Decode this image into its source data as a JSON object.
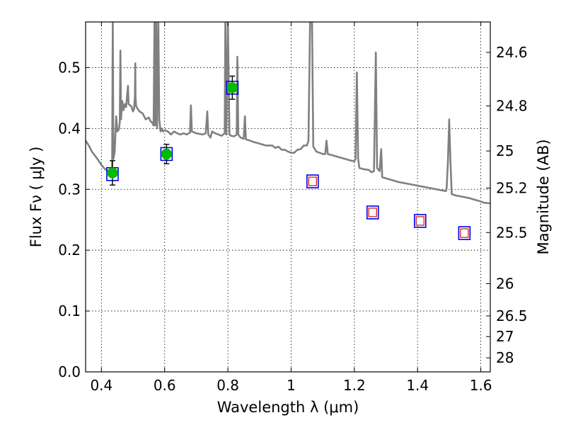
{
  "chart_data": {
    "type": "scatter",
    "xlabel": "Wavelength  λ (μm)",
    "ylabel_left": "Flux  Fν  ( μJy )",
    "ylabel_right": "Magnitude (AB)",
    "xlim": [
      0.35,
      1.63
    ],
    "ylim": [
      0,
      0.575
    ],
    "grid": true,
    "x_ticks": [
      0.4,
      0.6,
      0.8,
      1.0,
      1.2,
      1.4,
      1.6
    ],
    "x_tick_labels": [
      "0.4",
      "0.6",
      "0.8",
      "1",
      "1.2",
      "1.4",
      "1.6"
    ],
    "y_ticks": [
      0,
      0.1,
      0.2,
      0.3,
      0.4,
      0.5
    ],
    "y_tick_labels": [
      "0.0",
      "0.1",
      "0.2",
      "0.3",
      "0.4",
      "0.5"
    ],
    "right_ticks": [
      {
        "label": "24.6",
        "flux": 0.525
      },
      {
        "label": "24.8",
        "flux": 0.437
      },
      {
        "label": "25",
        "flux": 0.363
      },
      {
        "label": "25.2",
        "flux": 0.302
      },
      {
        "label": "25.5",
        "flux": 0.229
      },
      {
        "label": "26",
        "flux": 0.145
      },
      {
        "label": "26.5",
        "flux": 0.092
      },
      {
        "label": "27",
        "flux": 0.058
      },
      {
        "label": "28",
        "flux": 0.023
      }
    ],
    "observed_points": [
      {
        "x": 0.435,
        "y": 0.327,
        "yerr": 0.02
      },
      {
        "x": 0.606,
        "y": 0.358,
        "yerr": 0.016
      },
      {
        "x": 0.814,
        "y": 0.467,
        "yerr": 0.019
      }
    ],
    "model_box_points": [
      {
        "x": 0.435,
        "y": 0.325
      },
      {
        "x": 0.606,
        "y": 0.358
      },
      {
        "x": 0.814,
        "y": 0.467
      },
      {
        "x": 1.068,
        "y": 0.313
      },
      {
        "x": 1.258,
        "y": 0.262
      },
      {
        "x": 1.408,
        "y": 0.248
      },
      {
        "x": 1.548,
        "y": 0.228
      }
    ],
    "predicted_points": [
      {
        "x": 1.068,
        "y": 0.313
      },
      {
        "x": 1.258,
        "y": 0.262
      },
      {
        "x": 1.408,
        "y": 0.248
      },
      {
        "x": 1.548,
        "y": 0.228
      }
    ],
    "spectrum": [
      [
        0.35,
        0.38
      ],
      [
        0.36,
        0.372
      ],
      [
        0.37,
        0.362
      ],
      [
        0.38,
        0.355
      ],
      [
        0.39,
        0.348
      ],
      [
        0.4,
        0.34
      ],
      [
        0.41,
        0.334
      ],
      [
        0.42,
        0.33
      ],
      [
        0.425,
        0.328
      ],
      [
        0.43,
        0.326
      ],
      [
        0.434,
        0.338
      ],
      [
        0.436,
        0.58
      ],
      [
        0.438,
        0.35
      ],
      [
        0.442,
        0.362
      ],
      [
        0.447,
        0.42
      ],
      [
        0.45,
        0.395
      ],
      [
        0.455,
        0.398
      ],
      [
        0.458,
        0.41
      ],
      [
        0.46,
        0.528
      ],
      [
        0.462,
        0.415
      ],
      [
        0.466,
        0.445
      ],
      [
        0.47,
        0.43
      ],
      [
        0.474,
        0.44
      ],
      [
        0.478,
        0.435
      ],
      [
        0.484,
        0.47
      ],
      [
        0.486,
        0.44
      ],
      [
        0.495,
        0.436
      ],
      [
        0.5,
        0.428
      ],
      [
        0.503,
        0.432
      ],
      [
        0.506,
        0.452
      ],
      [
        0.507,
        0.507
      ],
      [
        0.508,
        0.45
      ],
      [
        0.51,
        0.436
      ],
      [
        0.52,
        0.428
      ],
      [
        0.53,
        0.425
      ],
      [
        0.54,
        0.415
      ],
      [
        0.55,
        0.418
      ],
      [
        0.555,
        0.412
      ],
      [
        0.56,
        0.41
      ],
      [
        0.565,
        0.405
      ],
      [
        0.568,
        0.58
      ],
      [
        0.57,
        0.405
      ],
      [
        0.573,
        0.58
      ],
      [
        0.576,
        0.4
      ],
      [
        0.58,
        0.58
      ],
      [
        0.583,
        0.415
      ],
      [
        0.587,
        0.395
      ],
      [
        0.59,
        0.4
      ],
      [
        0.595,
        0.395
      ],
      [
        0.6,
        0.397
      ],
      [
        0.61,
        0.395
      ],
      [
        0.62,
        0.39
      ],
      [
        0.63,
        0.395
      ],
      [
        0.64,
        0.392
      ],
      [
        0.65,
        0.39
      ],
      [
        0.66,
        0.392
      ],
      [
        0.67,
        0.39
      ],
      [
        0.68,
        0.393
      ],
      [
        0.683,
        0.438
      ],
      [
        0.686,
        0.395
      ],
      [
        0.7,
        0.392
      ],
      [
        0.72,
        0.39
      ],
      [
        0.73,
        0.392
      ],
      [
        0.735,
        0.428
      ],
      [
        0.738,
        0.39
      ],
      [
        0.745,
        0.385
      ],
      [
        0.75,
        0.395
      ],
      [
        0.76,
        0.392
      ],
      [
        0.77,
        0.39
      ],
      [
        0.78,
        0.388
      ],
      [
        0.79,
        0.392
      ],
      [
        0.792,
        0.58
      ],
      [
        0.795,
        0.39
      ],
      [
        0.8,
        0.58
      ],
      [
        0.805,
        0.39
      ],
      [
        0.81,
        0.388
      ],
      [
        0.82,
        0.387
      ],
      [
        0.828,
        0.39
      ],
      [
        0.83,
        0.518
      ],
      [
        0.833,
        0.39
      ],
      [
        0.84,
        0.385
      ],
      [
        0.85,
        0.383
      ],
      [
        0.854,
        0.42
      ],
      [
        0.857,
        0.382
      ],
      [
        0.87,
        0.38
      ],
      [
        0.88,
        0.378
      ],
      [
        0.9,
        0.375
      ],
      [
        0.92,
        0.372
      ],
      [
        0.94,
        0.372
      ],
      [
        0.95,
        0.368
      ],
      [
        0.96,
        0.37
      ],
      [
        0.97,
        0.365
      ],
      [
        0.98,
        0.365
      ],
      [
        0.99,
        0.362
      ],
      [
        1.0,
        0.36
      ],
      [
        1.01,
        0.36
      ],
      [
        1.02,
        0.365
      ],
      [
        1.03,
        0.366
      ],
      [
        1.04,
        0.372
      ],
      [
        1.05,
        0.372
      ],
      [
        1.055,
        0.38
      ],
      [
        1.06,
        0.58
      ],
      [
        1.066,
        0.58
      ],
      [
        1.07,
        0.37
      ],
      [
        1.08,
        0.362
      ],
      [
        1.09,
        0.36
      ],
      [
        1.1,
        0.358
      ],
      [
        1.108,
        0.358
      ],
      [
        1.112,
        0.38
      ],
      [
        1.116,
        0.358
      ],
      [
        1.13,
        0.356
      ],
      [
        1.15,
        0.353
      ],
      [
        1.17,
        0.35
      ],
      [
        1.19,
        0.347
      ],
      [
        1.2,
        0.346
      ],
      [
        1.204,
        0.35
      ],
      [
        1.208,
        0.492
      ],
      [
        1.212,
        0.35
      ],
      [
        1.216,
        0.335
      ],
      [
        1.23,
        0.333
      ],
      [
        1.245,
        0.332
      ],
      [
        1.255,
        0.328
      ],
      [
        1.262,
        0.33
      ],
      [
        1.268,
        0.525
      ],
      [
        1.272,
        0.335
      ],
      [
        1.28,
        0.33
      ],
      [
        1.285,
        0.366
      ],
      [
        1.288,
        0.32
      ],
      [
        1.3,
        0.318
      ],
      [
        1.32,
        0.315
      ],
      [
        1.34,
        0.312
      ],
      [
        1.36,
        0.31
      ],
      [
        1.38,
        0.308
      ],
      [
        1.4,
        0.306
      ],
      [
        1.42,
        0.304
      ],
      [
        1.44,
        0.302
      ],
      [
        1.46,
        0.3
      ],
      [
        1.48,
        0.298
      ],
      [
        1.49,
        0.297
      ],
      [
        1.492,
        0.302
      ],
      [
        1.496,
        0.345
      ],
      [
        1.5,
        0.415
      ],
      [
        1.504,
        0.345
      ],
      [
        1.508,
        0.292
      ],
      [
        1.52,
        0.29
      ],
      [
        1.54,
        0.288
      ],
      [
        1.56,
        0.286
      ],
      [
        1.58,
        0.283
      ],
      [
        1.6,
        0.28
      ],
      [
        1.61,
        0.278
      ],
      [
        1.63,
        0.277
      ]
    ],
    "colors": {
      "spectrum": "#808080",
      "observed_fill": "#00bb00",
      "box_edge": "#0000ee",
      "predicted_edge": "#cc2222",
      "errorbar": "#000000",
      "grid": "#000000"
    }
  }
}
